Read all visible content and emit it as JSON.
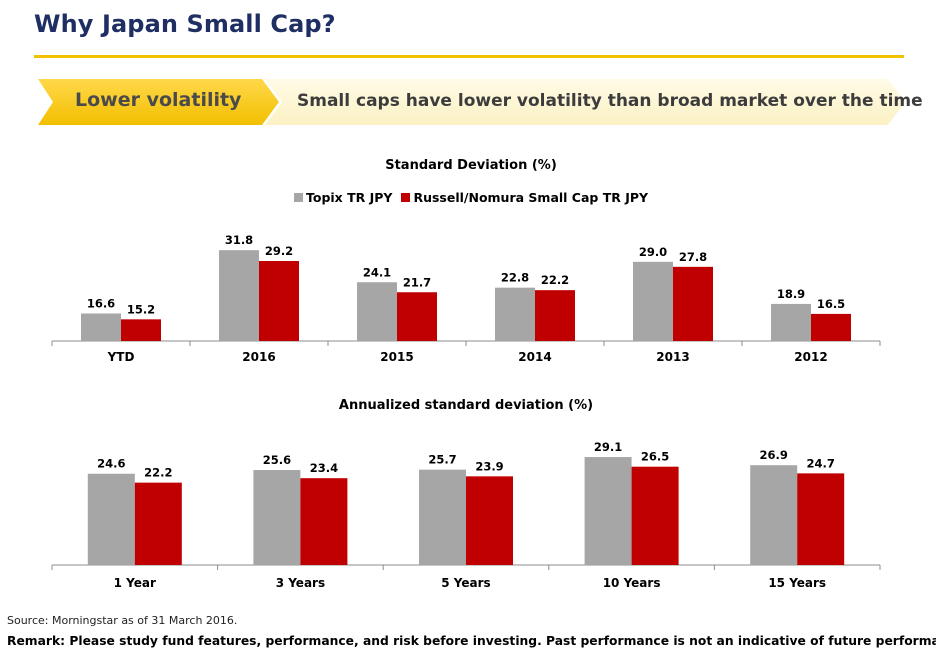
{
  "header": {
    "title": "Why Japan Small Cap?"
  },
  "banner": {
    "tag": "Lower volatility",
    "message": "Small caps have lower volatility than broad market over the time"
  },
  "colors": {
    "title_navy": "#1f2f63",
    "rule_gold": "#f2c200",
    "chevron_gold": "#f7c900",
    "chevron_light": "#fdf7d4",
    "series_topix": "#a6a6a6",
    "series_russell": "#c00000"
  },
  "legend": {
    "items": [
      "Topix TR JPY",
      "Russell/Nomura Small Cap TR JPY"
    ]
  },
  "chart_data": [
    {
      "type": "bar",
      "title": "Standard Deviation (%)",
      "categories": [
        "YTD",
        "2016",
        "2015",
        "2014",
        "2013",
        "2012"
      ],
      "series": [
        {
          "name": "Topix TR JPY",
          "values": [
            16.6,
            31.8,
            24.1,
            22.8,
            29.0,
            18.9
          ]
        },
        {
          "name": "Russell/Nomura Small Cap TR JPY",
          "values": [
            15.2,
            29.2,
            21.7,
            22.2,
            27.8,
            16.5
          ]
        }
      ],
      "ylim": [
        10,
        34
      ],
      "grid": false,
      "legend": "top-center",
      "data_labels": true
    },
    {
      "type": "bar",
      "title": "Annualized standard deviation (%)",
      "categories": [
        "1 Year",
        "3 Years",
        "5 Years",
        "10 Years",
        "15 Years"
      ],
      "series": [
        {
          "name": "Topix TR JPY",
          "values": [
            24.6,
            25.6,
            25.7,
            29.1,
            26.9
          ]
        },
        {
          "name": "Russell/Nomura Small Cap TR JPY",
          "values": [
            22.2,
            23.4,
            23.9,
            26.5,
            24.7
          ]
        }
      ],
      "ylim": [
        0,
        31
      ],
      "grid": false,
      "legend": "none",
      "data_labels": true
    }
  ],
  "footer": {
    "source": "Source: Morningstar as of 31 March 2016.",
    "remark": "Remark: Please study fund features, performance, and risk before investing. Past performance is not an indicative of future performance."
  }
}
